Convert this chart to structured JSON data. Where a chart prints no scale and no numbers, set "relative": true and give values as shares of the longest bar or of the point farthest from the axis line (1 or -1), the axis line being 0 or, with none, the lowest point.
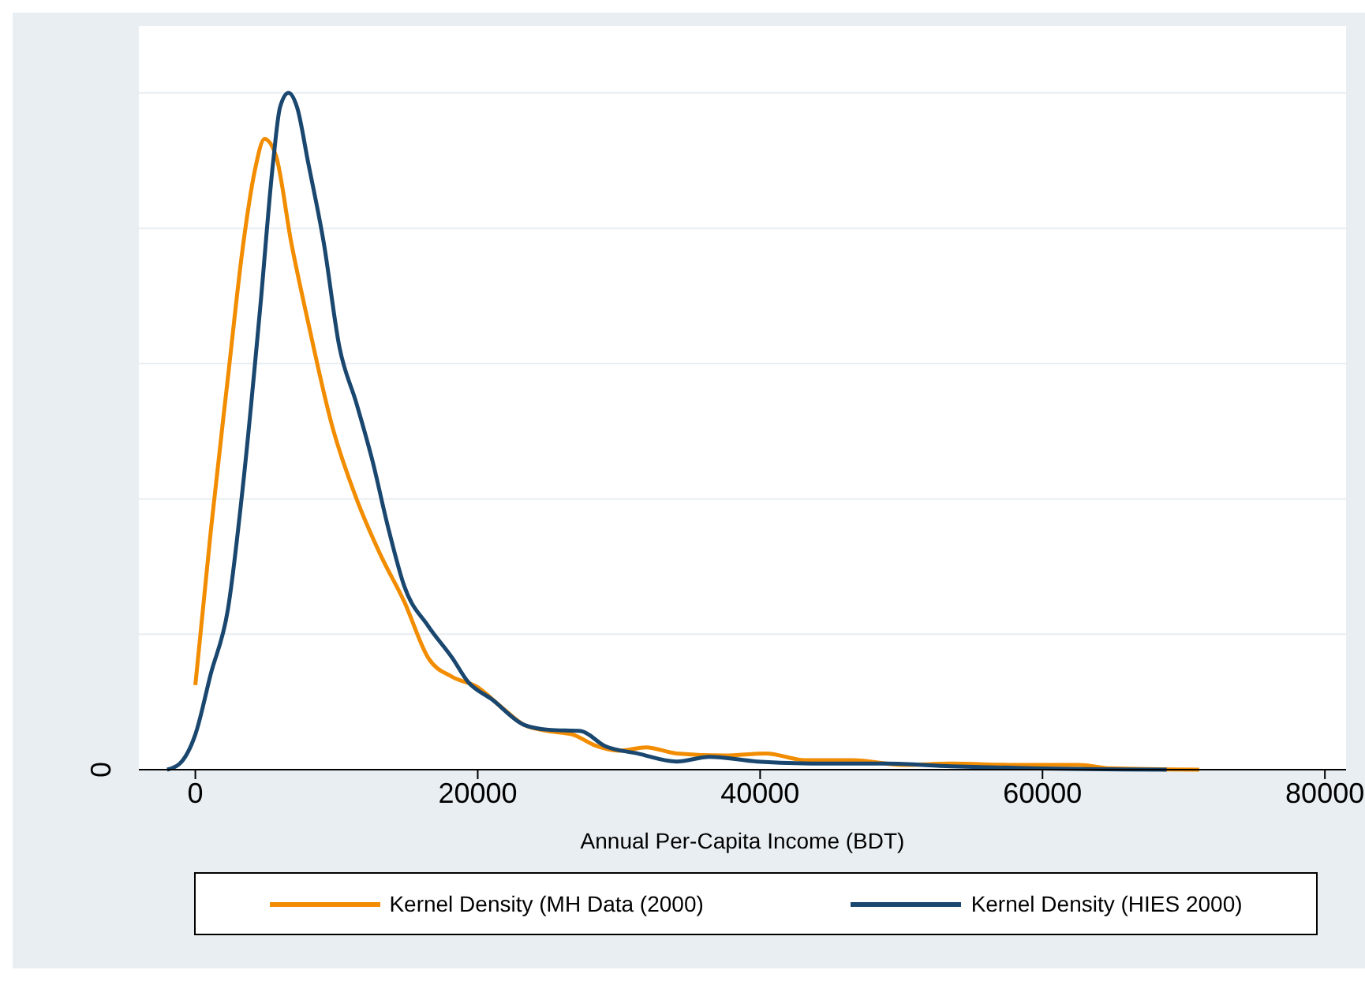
{
  "chart_data": {
    "type": "line",
    "relative": true,
    "xlabel": "Annual Per-Capita Income (BDT)",
    "xlim": [
      -4000,
      81500
    ],
    "xticks": [
      0,
      20000,
      40000,
      60000,
      80000
    ],
    "grid": "y",
    "legend": "bottom",
    "marker": "none",
    "line_style": "solid",
    "annotations": [
      "0"
    ],
    "series": [
      {
        "name": "Kernel Density (MH Data (2000)",
        "color": "#f28c00",
        "x": [
          0,
          1100,
          2300,
          3400,
          4200,
          4900,
          5700,
          6800,
          8000,
          9700,
          11400,
          13100,
          14800,
          16500,
          18200,
          19900,
          21600,
          23300,
          25000,
          26700,
          28400,
          30100,
          31900,
          34100,
          37500,
          40400,
          43200,
          46600,
          50100,
          53500,
          58000,
          62600,
          64800,
          71100
        ],
        "values": [
          0.125,
          0.354,
          0.578,
          0.778,
          0.884,
          0.932,
          0.908,
          0.778,
          0.66,
          0.507,
          0.401,
          0.318,
          0.248,
          0.165,
          0.137,
          0.123,
          0.094,
          0.066,
          0.057,
          0.052,
          0.035,
          0.028,
          0.033,
          0.024,
          0.021,
          0.024,
          0.014,
          0.014,
          0.007,
          0.009,
          0.007,
          0.007,
          0.002,
          0
        ]
      },
      {
        "name": "Kernel Density (HIES 2000)",
        "color": "#1a476f",
        "x": [
          -2000,
          -1100,
          0,
          1100,
          2300,
          3400,
          4600,
          5500,
          6000,
          6600,
          7200,
          8000,
          9100,
          10200,
          11400,
          12500,
          13700,
          14800,
          16500,
          18200,
          19300,
          21000,
          23300,
          25000,
          27300,
          29000,
          31300,
          34100,
          36400,
          39800,
          44400,
          48900,
          53500,
          59200,
          68800
        ],
        "values": [
          0,
          0.009,
          0.052,
          0.142,
          0.236,
          0.425,
          0.684,
          0.896,
          0.979,
          1,
          0.979,
          0.896,
          0.778,
          0.625,
          0.542,
          0.46,
          0.354,
          0.271,
          0.212,
          0.165,
          0.13,
          0.104,
          0.066,
          0.059,
          0.057,
          0.035,
          0.024,
          0.012,
          0.019,
          0.012,
          0.009,
          0.009,
          0.005,
          0.002,
          0
        ]
      }
    ]
  }
}
